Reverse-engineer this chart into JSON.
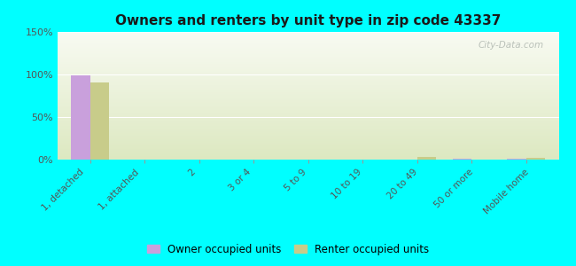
{
  "title": "Owners and renters by unit type in zip code 43337",
  "categories": [
    "1, detached",
    "1, attached",
    "2",
    "3 or 4",
    "5 to 9",
    "10 to 19",
    "20 to 49",
    "50 or more",
    "Mobile home"
  ],
  "owner_values": [
    98.5,
    0,
    0,
    0,
    0,
    0,
    0,
    0.8,
    1.2
  ],
  "renter_values": [
    91.0,
    0,
    0,
    0,
    0,
    0,
    3.0,
    0,
    2.0
  ],
  "owner_color": "#c9a0dc",
  "renter_color": "#c8cc8a",
  "background_color": "#00ffff",
  "plot_bg_top": "#f8faf2",
  "plot_bg_bottom": "#dce8c0",
  "ylim": [
    0,
    150
  ],
  "yticks": [
    0,
    50,
    100,
    150
  ],
  "ytick_labels": [
    "0%",
    "50%",
    "100%",
    "150%"
  ],
  "bar_width": 0.35,
  "legend_owner": "Owner occupied units",
  "legend_renter": "Renter occupied units",
  "watermark": "City-Data.com"
}
